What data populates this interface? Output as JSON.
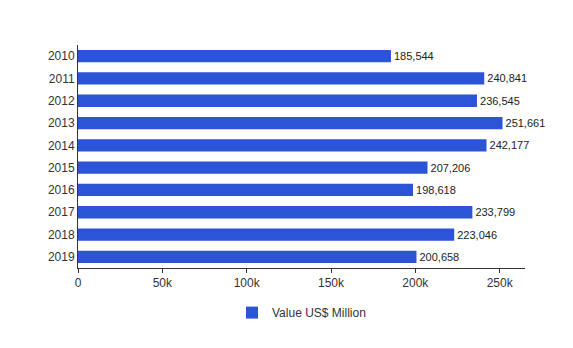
{
  "chart_data": {
    "type": "bar",
    "orientation": "horizontal",
    "categories": [
      "2010",
      "2011",
      "2012",
      "2013",
      "2014",
      "2015",
      "2016",
      "2017",
      "2018",
      "2019"
    ],
    "series": [
      {
        "name": "Value US$ Million",
        "color": "#2b54d6",
        "values": [
          185544,
          240841,
          236545,
          251661,
          242177,
          207206,
          198618,
          233799,
          223046,
          200658
        ],
        "value_labels": [
          "185,544",
          "240,841",
          "236,545",
          "251,661",
          "242,177",
          "207,206",
          "198,618",
          "233,799",
          "223,046",
          "200,658"
        ]
      }
    ],
    "xlim": [
      0,
      265000
    ],
    "xticks": [
      0,
      {
        "value": 50000,
        "label": "50k"
      },
      {
        "value": 100000,
        "label": "100k"
      },
      {
        "value": 150000,
        "label": "150k"
      },
      {
        "value": 200000,
        "label": "200k"
      },
      {
        "value": 250000,
        "label": "250k"
      }
    ],
    "grid": false,
    "legend": "bottom",
    "data_labels": true
  }
}
